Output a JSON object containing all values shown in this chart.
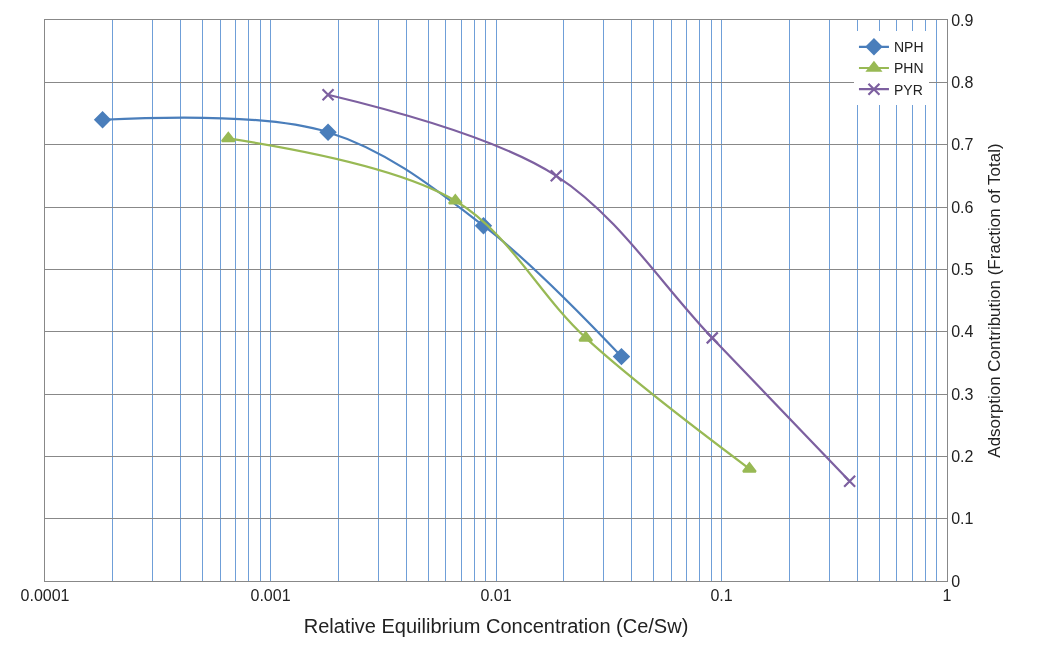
{
  "chart_data": {
    "type": "line",
    "xlabel": "Relative Equilibrium Concentration (Ce/Sw)",
    "ylabel": "Adsorption Contribution (Fraction of Total)",
    "log": "x",
    "xlim": [
      0.0001,
      1
    ],
    "xticks": [
      0.0001,
      {
        "value": 0.0002,
        "label": null
      },
      {
        "value": 0.0003,
        "label": null
      },
      {
        "value": 0.0004,
        "label": null
      },
      {
        "value": 0.0005,
        "label": null
      },
      {
        "value": 0.0006,
        "label": null
      },
      {
        "value": 0.0007,
        "label": null
      },
      {
        "value": 0.0008,
        "label": null
      },
      {
        "value": 0.0009,
        "label": null
      },
      0.001,
      {
        "value": 0.002,
        "label": null
      },
      {
        "value": 0.003,
        "label": null
      },
      {
        "value": 0.004,
        "label": null
      },
      {
        "value": 0.005,
        "label": null
      },
      {
        "value": 0.006,
        "label": null
      },
      {
        "value": 0.007,
        "label": null
      },
      {
        "value": 0.008,
        "label": null
      },
      {
        "value": 0.009,
        "label": null
      },
      0.01,
      {
        "value": 0.02,
        "label": null
      },
      {
        "value": 0.03,
        "label": null
      },
      {
        "value": 0.04,
        "label": null
      },
      {
        "value": 0.05,
        "label": null
      },
      {
        "value": 0.06,
        "label": null
      },
      {
        "value": 0.07,
        "label": null
      },
      {
        "value": 0.08,
        "label": null
      },
      {
        "value": 0.09,
        "label": null
      },
      0.1,
      {
        "value": 0.2,
        "label": null
      },
      {
        "value": 0.3,
        "label": null
      },
      {
        "value": 0.4,
        "label": null
      },
      {
        "value": 0.5,
        "label": null
      },
      {
        "value": 0.6,
        "label": null
      },
      {
        "value": 0.7,
        "label": null
      },
      {
        "value": 0.8,
        "label": null
      },
      {
        "value": 0.9,
        "label": null
      },
      1
    ],
    "ylim": [
      0,
      0.9
    ],
    "yticks": [
      0,
      0.1,
      0.2,
      0.3,
      0.4,
      0.5,
      0.6,
      0.7,
      0.8,
      0.9
    ],
    "grid": true,
    "legend": "top right",
    "series": [
      {
        "name": "NPH",
        "color": "#4a7ebb",
        "marker": "diamond",
        "x": [
          0.00018,
          0.0018,
          0.0088,
          0.036
        ],
        "values": [
          0.74,
          0.72,
          0.57,
          0.36
        ]
      },
      {
        "name": "PHN",
        "color": "#98b954",
        "marker": "triangle",
        "x": [
          0.00065,
          0.0066,
          0.025,
          0.133
        ],
        "values": [
          0.71,
          0.61,
          0.39,
          0.18
        ]
      },
      {
        "name": "PYR",
        "color": "#7d60a0",
        "marker": "cross",
        "x": [
          0.0018,
          0.0185,
          0.091,
          0.37
        ],
        "values": [
          0.78,
          0.65,
          0.39,
          0.16
        ]
      }
    ]
  }
}
